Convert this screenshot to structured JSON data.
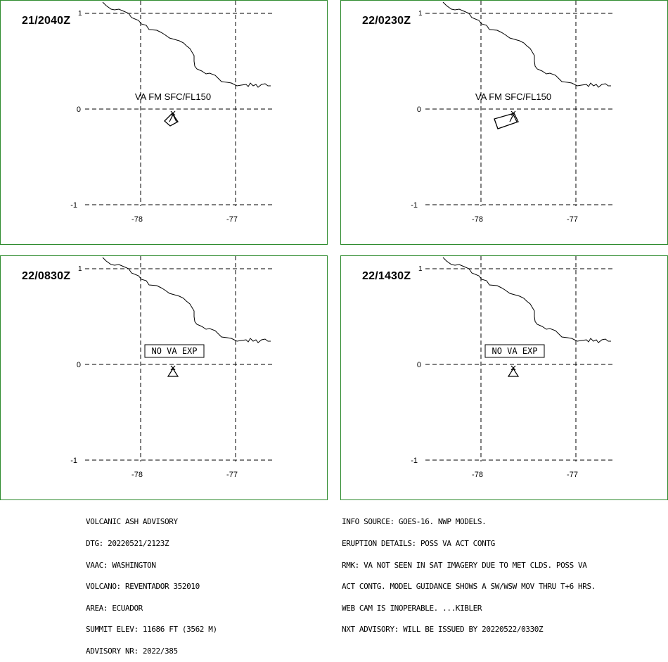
{
  "panels": [
    {
      "timestamp": "21/2040Z",
      "label": "VA FM SFC/FL150",
      "type": "va"
    },
    {
      "timestamp": "22/0230Z",
      "label": "VA FM SFC/FL150",
      "type": "va"
    },
    {
      "timestamp": "22/0830Z",
      "label": "NO VA EXP",
      "type": "none"
    },
    {
      "timestamp": "22/1430Z",
      "label": "NO VA EXP",
      "type": "none"
    }
  ],
  "axes": {
    "lat_labels": [
      "1",
      "0",
      "-1"
    ],
    "lon_labels": [
      "-78",
      "-77"
    ]
  },
  "advisory_left": [
    "VOLCANIC ASH ADVISORY",
    "DTG: 20220521/2123Z",
    "VAAC: WASHINGTON",
    "VOLCANO: REVENTADOR 352010",
    "AREA: ECUADOR",
    "SUMMIT ELEV: 11686 FT (3562 M)",
    "ADVISORY NR: 2022/385"
  ],
  "advisory_right": [
    "INFO SOURCE: GOES-16. NWP MODELS.",
    "ERUPTION DETAILS: POSS VA ACT CONTG",
    "RMK: VA NOT SEEN IN SAT IMAGERY DUE TO MET CLDS. POSS VA",
    "ACT CONTG. MODEL GUIDANCE SHOWS A SW/WSW MOV THRU T+6 HRS.",
    "WEB CAM IS INOPERABLE. ...KIBLER",
    "NXT ADVISORY: WILL BE ISSUED BY 20220522/0330Z"
  ],
  "colors": {
    "frame": "#2e8b2e",
    "ink": "#000000"
  }
}
